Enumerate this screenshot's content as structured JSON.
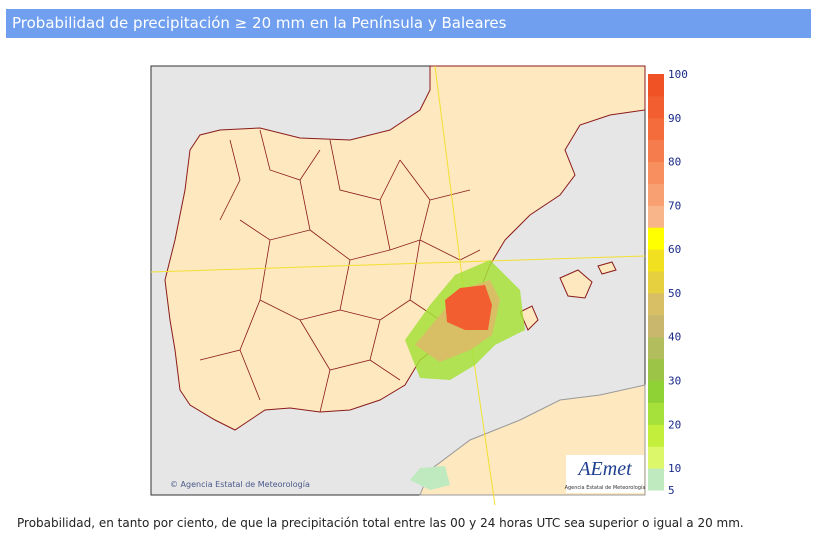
{
  "header": {
    "title": "Probabilidad de precipitación ≥ 20 mm en la Península y Baleares"
  },
  "map": {
    "copyright": "© Agencia Estatal de Meteorología",
    "logo": "AEmet",
    "logo_subtitle": "Agencia Estatal de Meteorología"
  },
  "legend": {
    "ticks": [
      100,
      90,
      80,
      70,
      60,
      50,
      40,
      30,
      20,
      10,
      5
    ],
    "colors": [
      "#bfe9bf",
      "#dcf86a",
      "#c4ee3c",
      "#a6e03a",
      "#8ed236",
      "#9cc548",
      "#b2bd5e",
      "#c9b76e",
      "#d8bf66",
      "#e6d040",
      "#f0e020",
      "#ffff00",
      "#f9b58a",
      "#f8a072",
      "#f7905e",
      "#f57c4c",
      "#f46c3c",
      "#f25e30",
      "#f05226"
    ],
    "min": 5,
    "max": 100
  },
  "caption": "Probabilidad, en tanto por ciento, de que la precipitación total entre las 00 y 24 horas UTC sea superior o igual a 20 mm."
}
